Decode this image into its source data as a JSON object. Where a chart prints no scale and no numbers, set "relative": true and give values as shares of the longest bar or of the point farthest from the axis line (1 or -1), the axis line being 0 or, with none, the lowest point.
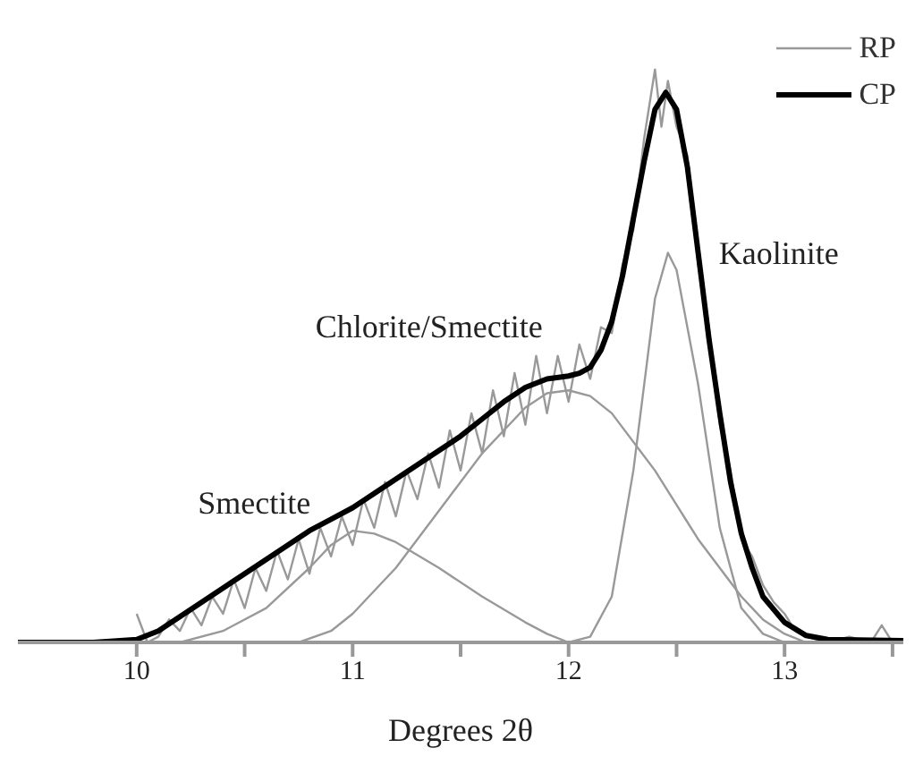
{
  "chart_data": {
    "type": "line",
    "relative": true,
    "xlabel": "Degrees 2θ",
    "xlim": [
      9.45,
      13.55
    ],
    "xticks": [
      10,
      {
        "value": 10.5,
        "label": null
      },
      11,
      {
        "value": 11.5,
        "label": null
      },
      12,
      {
        "value": 12.5,
        "label": null
      },
      13,
      {
        "value": 13.5,
        "label": null
      }
    ],
    "tick_labels": "x",
    "legend": "top right",
    "grid": false,
    "marker": "none",
    "line_style": "solid",
    "annotations": [
      {
        "text": "Smectite",
        "x": 11.0,
        "y": 0.195
      },
      {
        "text": "Chlorite/Smectite",
        "x": 12.0,
        "y": 0.44
      },
      {
        "text": "Kaolinite",
        "x": 12.46,
        "y": 0.68
      }
    ],
    "series": [
      {
        "name": "RP",
        "color": "#999999",
        "x": [
          10.0,
          10.05,
          10.1,
          10.15,
          10.2,
          10.25,
          10.3,
          10.35,
          10.4,
          10.45,
          10.5,
          10.55,
          10.6,
          10.65,
          10.7,
          10.75,
          10.8,
          10.85,
          10.9,
          10.95,
          11.0,
          11.05,
          11.1,
          11.15,
          11.2,
          11.25,
          11.3,
          11.35,
          11.4,
          11.45,
          11.5,
          11.55,
          11.6,
          11.65,
          11.7,
          11.75,
          11.8,
          11.85,
          11.9,
          11.95,
          12.0,
          12.05,
          12.1,
          12.15,
          12.2,
          12.25,
          12.3,
          12.35,
          12.4,
          12.43,
          12.46,
          12.5,
          12.55,
          12.6,
          12.65,
          12.7,
          12.75,
          12.8,
          12.85,
          12.9,
          12.95,
          13.0,
          13.05,
          13.1,
          13.2,
          13.3,
          13.4,
          13.45,
          13.5
        ],
        "values": [
          0.05,
          0.0,
          0.01,
          0.04,
          0.02,
          0.06,
          0.03,
          0.08,
          0.05,
          0.11,
          0.06,
          0.13,
          0.09,
          0.16,
          0.11,
          0.18,
          0.12,
          0.2,
          0.15,
          0.22,
          0.17,
          0.25,
          0.2,
          0.28,
          0.22,
          0.3,
          0.25,
          0.33,
          0.27,
          0.37,
          0.3,
          0.4,
          0.33,
          0.44,
          0.36,
          0.47,
          0.38,
          0.5,
          0.4,
          0.5,
          0.42,
          0.52,
          0.46,
          0.55,
          0.54,
          0.66,
          0.72,
          0.88,
          1.0,
          0.9,
          0.98,
          0.9,
          0.85,
          0.66,
          0.55,
          0.38,
          0.3,
          0.18,
          0.15,
          0.1,
          0.07,
          0.05,
          0.02,
          0.01,
          0.0,
          0.01,
          0.0,
          0.03,
          0.0
        ]
      },
      {
        "name": "CP",
        "color": "#000000",
        "x": [
          9.45,
          9.8,
          10.0,
          10.1,
          10.2,
          10.3,
          10.4,
          10.5,
          10.6,
          10.7,
          10.8,
          10.9,
          11.0,
          11.1,
          11.2,
          11.3,
          11.4,
          11.5,
          11.6,
          11.7,
          11.8,
          11.9,
          12.0,
          12.05,
          12.1,
          12.15,
          12.2,
          12.25,
          12.3,
          12.35,
          12.4,
          12.45,
          12.5,
          12.55,
          12.6,
          12.65,
          12.7,
          12.75,
          12.8,
          12.85,
          12.9,
          13.0,
          13.1,
          13.2,
          13.55
        ],
        "values": [
          0,
          0,
          0.005,
          0.02,
          0.045,
          0.07,
          0.095,
          0.12,
          0.145,
          0.17,
          0.195,
          0.215,
          0.235,
          0.26,
          0.285,
          0.31,
          0.335,
          0.36,
          0.39,
          0.42,
          0.445,
          0.46,
          0.465,
          0.47,
          0.48,
          0.51,
          0.56,
          0.64,
          0.74,
          0.84,
          0.93,
          0.96,
          0.93,
          0.83,
          0.68,
          0.53,
          0.4,
          0.28,
          0.19,
          0.13,
          0.08,
          0.035,
          0.012,
          0.005,
          0.003
        ]
      },
      {
        "color": "#999999",
        "x": [
          10.2,
          10.4,
          10.6,
          10.8,
          10.9,
          11.0,
          11.1,
          11.2,
          11.4,
          11.6,
          11.8,
          11.9,
          12.0
        ],
        "values": [
          0,
          0.02,
          0.06,
          0.13,
          0.17,
          0.195,
          0.19,
          0.175,
          0.13,
          0.08,
          0.035,
          0.015,
          0
        ]
      },
      {
        "color": "#999999",
        "x": [
          10.75,
          10.9,
          11.0,
          11.2,
          11.4,
          11.6,
          11.8,
          11.9,
          12.0,
          12.1,
          12.2,
          12.4,
          12.6,
          12.8,
          12.9,
          13.0,
          13.1
        ],
        "values": [
          0,
          0.02,
          0.05,
          0.13,
          0.23,
          0.33,
          0.41,
          0.435,
          0.44,
          0.43,
          0.4,
          0.3,
          0.18,
          0.08,
          0.04,
          0.015,
          0
        ]
      },
      {
        "color": "#999999",
        "x": [
          12.0,
          12.1,
          12.2,
          12.3,
          12.4,
          12.46,
          12.5,
          12.6,
          12.7,
          12.8,
          12.9,
          13.0
        ],
        "values": [
          0,
          0.01,
          0.08,
          0.3,
          0.6,
          0.68,
          0.65,
          0.45,
          0.2,
          0.06,
          0.015,
          0
        ]
      }
    ]
  }
}
